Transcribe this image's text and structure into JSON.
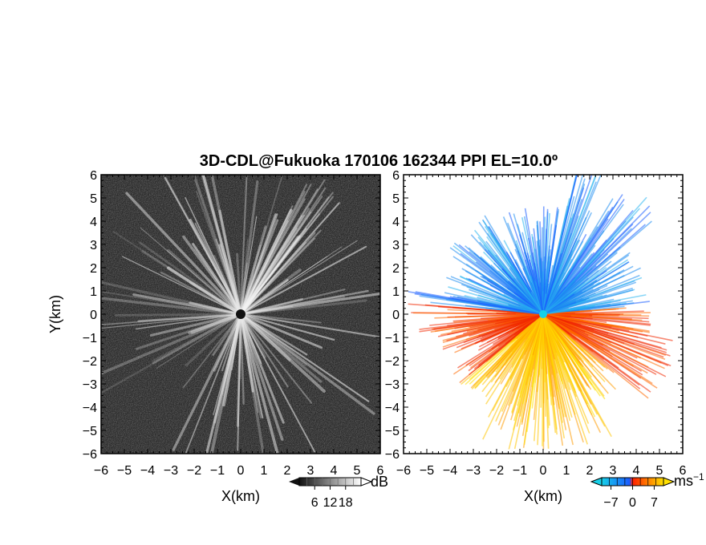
{
  "title": "3D-CDL@Fukuoka 170106 162344 PPI EL=10.0º",
  "chart_data": [
    {
      "type": "heatmap",
      "panel": "left",
      "quantity": "dB",
      "xlabel": "X(km)",
      "ylabel": "Y(km)",
      "xlim": [
        -6,
        6
      ],
      "ylim": [
        -6,
        6
      ],
      "x_ticks": [
        "−6",
        "−5",
        "−4",
        "−3",
        "−2",
        "−1",
        "0",
        "1",
        "2",
        "3",
        "4",
        "5",
        "6"
      ],
      "y_ticks": [
        "6",
        "5",
        "4",
        "3",
        "2",
        "1",
        "0",
        "−1",
        "−2",
        "−3",
        "−4",
        "−5",
        "−6"
      ],
      "grid": false,
      "colorbar": {
        "unit": "dB",
        "range": [
          0,
          24
        ],
        "tick_values": [
          6,
          12,
          18
        ],
        "tick_labels": [
          "6",
          "12",
          "18"
        ],
        "colors": [
          "#111111",
          "#ffffff"
        ]
      },
      "background_color": "#2a2a2a",
      "radar_center": [
        0,
        0
      ]
    },
    {
      "type": "heatmap",
      "panel": "right",
      "quantity": "ms-1",
      "xlabel": "X(km)",
      "ylabel": "",
      "xlim": [
        -6,
        6
      ],
      "ylim": [
        -6,
        6
      ],
      "x_ticks": [
        "−6",
        "−5",
        "−4",
        "−3",
        "−2",
        "−1",
        "0",
        "1",
        "2",
        "3",
        "4",
        "5",
        "6"
      ],
      "y_ticks": [
        "6",
        "5",
        "4",
        "3",
        "2",
        "1",
        "0",
        "−1",
        "−2",
        "−3",
        "−4",
        "−5",
        "−6"
      ],
      "grid": false,
      "colorbar": {
        "unit": "ms",
        "unit_exponent": "−1",
        "range": [
          -10,
          10
        ],
        "tick_values": [
          -7,
          0,
          7
        ],
        "tick_labels": [
          "−7",
          "0",
          "7"
        ],
        "colors": [
          "#17d0e8",
          "#1a5cff",
          "#ff2000",
          "#ffe000"
        ]
      },
      "sectors": {
        "approaching_color": "#1e8cf0",
        "receding_red_color": "#f02800",
        "receding_yellow_color": "#ffc400"
      },
      "radar_center": [
        0,
        0
      ]
    }
  ]
}
